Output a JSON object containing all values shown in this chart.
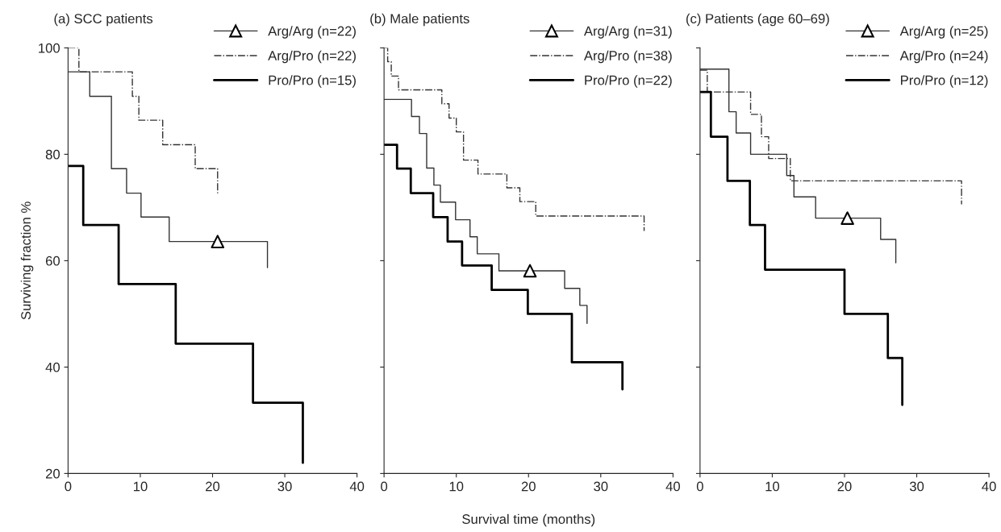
{
  "chart_data": [
    {
      "type": "step",
      "title": "(a) SCC patients",
      "ylabel": "Surviving fraction %",
      "xlim": [
        0,
        40
      ],
      "xticks": [
        0,
        10,
        20,
        30,
        40
      ],
      "ylim": [
        20,
        100
      ],
      "yticks": [
        20,
        40,
        60,
        80,
        100
      ],
      "legend": "top right",
      "grid": false,
      "series": [
        {
          "name": "Arg/Arg (n=22)",
          "color": "#333333",
          "line_style": "solid",
          "x": [
            0,
            3,
            6,
            8.1,
            10.1,
            14,
            27.6,
            27.6
          ],
          "values": [
            95.5,
            90.9,
            77.3,
            72.7,
            68.2,
            63.6,
            63.6,
            58.7
          ]
        },
        {
          "type": "scatter",
          "marker": "triangle",
          "color": "#000000",
          "x": [
            20.7
          ],
          "values": [
            63.6
          ]
        },
        {
          "name": "Arg/Pro (n=22)",
          "color": "#333333",
          "line_style": "dashdot",
          "x": [
            0,
            1.5,
            8.9,
            9.8,
            13.1,
            17.6,
            20.7,
            20.7
          ],
          "values": [
            100,
            95.5,
            90.9,
            86.4,
            81.8,
            77.3,
            77.3,
            72.5
          ]
        },
        {
          "name": "Pro/Pro (n=15)",
          "color": "#000000",
          "line_style": "solid",
          "x": [
            0,
            2.1,
            7.0,
            14.9,
            25.6,
            32.5,
            32.5
          ],
          "values": [
            77.8,
            66.7,
            55.6,
            44.4,
            33.3,
            33.3,
            22.0
          ]
        }
      ]
    },
    {
      "type": "step",
      "title": "(b) Male patients",
      "xlabel": "Survival time (months)",
      "xlim": [
        0,
        40
      ],
      "xticks": [
        0,
        10,
        20,
        30,
        40
      ],
      "ylim": [
        20,
        100
      ],
      "yticks": [
        20,
        40,
        60,
        80,
        100
      ],
      "tick_labels": "x",
      "legend": "top right",
      "grid": false,
      "series": [
        {
          "name": "Arg/Arg (n=31)",
          "color": "#333333",
          "line_style": "solid",
          "x": [
            0,
            3.8,
            4.9,
            5.9,
            6.9,
            7.8,
            9.9,
            11.9,
            12.9,
            15.9,
            25.0,
            27.1,
            28.1,
            28.1
          ],
          "values": [
            90.3,
            87.1,
            83.9,
            77.4,
            74.2,
            71.0,
            67.7,
            64.5,
            61.3,
            58.1,
            54.8,
            51.6,
            51.6,
            48.2
          ]
        },
        {
          "type": "scatter",
          "marker": "triangle",
          "color": "#000000",
          "x": [
            20.2
          ],
          "values": [
            58.1
          ]
        },
        {
          "name": "Arg/Pro (n=38)",
          "color": "#333333",
          "line_style": "dashdot",
          "x": [
            0,
            0.5,
            1,
            2,
            8,
            9,
            10,
            11,
            13,
            17,
            18.8,
            21,
            36,
            36
          ],
          "values": [
            100,
            97.4,
            94.7,
            92.1,
            89.5,
            86.8,
            84.2,
            78.9,
            76.3,
            73.7,
            71.1,
            68.4,
            68.4,
            65.6
          ]
        },
        {
          "name": "Pro/Pro (n=22)",
          "color": "#000000",
          "line_style": "solid",
          "x": [
            0,
            1.8,
            3.7,
            6.8,
            8.8,
            10.8,
            14.9,
            19.9,
            26.0,
            33.0,
            33.0
          ],
          "values": [
            81.8,
            77.3,
            72.7,
            68.2,
            63.6,
            59.1,
            54.5,
            50.0,
            40.9,
            40.9,
            35.8
          ]
        }
      ]
    },
    {
      "type": "step",
      "title": "(c) Patients (age 60–69)",
      "xlim": [
        0,
        40
      ],
      "xticks": [
        0,
        10,
        20,
        30,
        40
      ],
      "ylim": [
        20,
        100
      ],
      "yticks": [
        20,
        40,
        60,
        80,
        100
      ],
      "tick_labels": "x",
      "legend": "top right",
      "grid": false,
      "series": [
        {
          "name": "Arg/Arg (n=25)",
          "color": "#333333",
          "line_style": "solid",
          "x": [
            0,
            4,
            5,
            7,
            12,
            13,
            16,
            25,
            27.1,
            27.1
          ],
          "values": [
            96,
            88,
            84,
            80,
            76,
            72,
            68,
            64,
            64,
            59.6
          ]
        },
        {
          "type": "scatter",
          "marker": "triangle",
          "color": "#000000",
          "x": [
            20.4
          ],
          "values": [
            68
          ]
        },
        {
          "name": "Arg/Pro (n=24)",
          "color": "#333333",
          "line_style": "dashdot",
          "x": [
            0,
            1,
            7,
            8.5,
            9.5,
            12.5,
            36.2,
            36.2
          ],
          "values": [
            95.8,
            91.7,
            87.5,
            83.3,
            79.2,
            75.0,
            75.0,
            70.6
          ]
        },
        {
          "name": "Pro/Pro (n=12)",
          "color": "#000000",
          "line_style": "solid",
          "x": [
            0,
            1.5,
            3.8,
            6.9,
            9.0,
            20.0,
            26.0,
            28.0,
            28.0
          ],
          "values": [
            91.7,
            83.3,
            75.0,
            66.7,
            58.3,
            50.0,
            41.7,
            41.7,
            32.9
          ]
        }
      ]
    }
  ]
}
